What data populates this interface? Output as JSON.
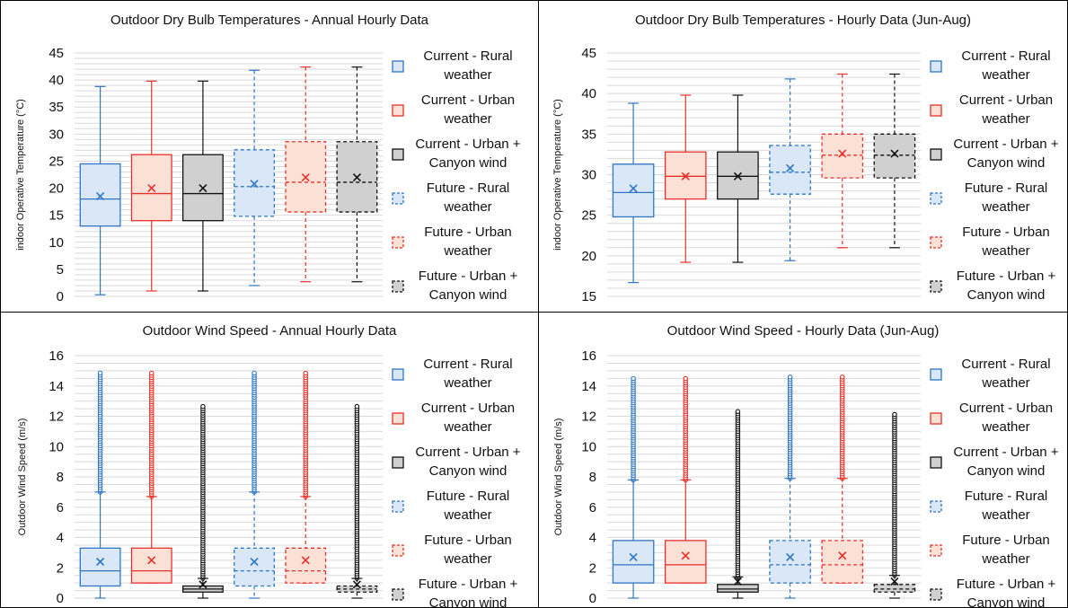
{
  "colors": {
    "blue": "#2E75C6",
    "blue_fill": "#DAE7F6",
    "red": "#E8302A",
    "red_fill": "#FBE0D6",
    "black": "#111111",
    "gray_fill": "#D0D0D0",
    "grid": "#D9D9D9"
  },
  "legend": [
    {
      "line1": "Current - Rural",
      "line2": "weather",
      "color": "blue",
      "dashed": false
    },
    {
      "line1": "Current - Urban",
      "line2": "weather",
      "color": "red",
      "dashed": false
    },
    {
      "line1": "Current - Urban +",
      "line2": "Canyon wind",
      "color": "black",
      "dashed": false
    },
    {
      "line1": "Future - Rural",
      "line2": "weather",
      "color": "blue",
      "dashed": true
    },
    {
      "line1": "Future - Urban",
      "line2": "weather",
      "color": "red",
      "dashed": true
    },
    {
      "line1": "Future - Urban +",
      "line2": "Canyon wind",
      "color": "black",
      "dashed": true
    }
  ],
  "chart_data": [
    {
      "type": "box",
      "title": "Outdoor Dry Bulb Temperatures - Annual Hourly Data",
      "ylabel": "indoor Operative Temperature (°C)",
      "ylim": [
        0,
        45
      ],
      "ytick_step": 5,
      "minor_step": 1,
      "series": [
        {
          "min": 0.3,
          "q1": 13,
          "median": 18,
          "q3": 24.5,
          "mean": 18.5,
          "max": 38.8,
          "whisker_low": 0.3,
          "whisker_high": 38.8
        },
        {
          "min": 1,
          "q1": 14,
          "median": 19,
          "q3": 26.2,
          "mean": 20,
          "max": 39.8,
          "whisker_low": 1,
          "whisker_high": 39.8
        },
        {
          "min": 1,
          "q1": 14,
          "median": 19,
          "q3": 26.2,
          "mean": 20,
          "max": 39.8,
          "whisker_low": 1,
          "whisker_high": 39.8
        },
        {
          "min": 2,
          "q1": 14.8,
          "median": 20.3,
          "q3": 27.1,
          "mean": 20.8,
          "max": 41.8,
          "whisker_low": 2,
          "whisker_high": 41.8
        },
        {
          "min": 2.7,
          "q1": 15.6,
          "median": 21.1,
          "q3": 28.6,
          "mean": 22,
          "max": 42.4,
          "whisker_low": 2.7,
          "whisker_high": 42.4
        },
        {
          "min": 2.7,
          "q1": 15.6,
          "median": 21.1,
          "q3": 28.6,
          "mean": 22,
          "max": 42.4,
          "whisker_low": 2.7,
          "whisker_high": 42.4
        }
      ]
    },
    {
      "type": "box",
      "title": "Outdoor Dry Bulb Temperatures - Hourly Data (Jun-Aug)",
      "ylabel": "indoor Operative Temperature (°C)",
      "ylim": [
        15,
        45
      ],
      "ytick_step": 5,
      "minor_step": 1,
      "series": [
        {
          "min": 16.7,
          "q1": 24.8,
          "median": 27.8,
          "q3": 31.3,
          "mean": 28.3,
          "max": 38.8,
          "whisker_low": 16.7,
          "whisker_high": 38.8
        },
        {
          "min": 19.2,
          "q1": 27,
          "median": 29.8,
          "q3": 32.8,
          "mean": 29.8,
          "max": 39.8,
          "whisker_low": 19.2,
          "whisker_high": 39.8
        },
        {
          "min": 19.2,
          "q1": 27,
          "median": 29.8,
          "q3": 32.8,
          "mean": 29.8,
          "max": 39.8,
          "whisker_low": 19.2,
          "whisker_high": 39.8
        },
        {
          "min": 19.4,
          "q1": 27.6,
          "median": 30.3,
          "q3": 33.6,
          "mean": 30.8,
          "max": 41.8,
          "whisker_low": 19.4,
          "whisker_high": 41.8
        },
        {
          "min": 21,
          "q1": 29.6,
          "median": 32.4,
          "q3": 35,
          "mean": 32.6,
          "max": 42.4,
          "whisker_low": 21,
          "whisker_high": 42.4
        },
        {
          "min": 21,
          "q1": 29.6,
          "median": 32.4,
          "q3": 35,
          "mean": 32.6,
          "max": 42.4,
          "whisker_low": 21,
          "whisker_high": 42.4
        }
      ]
    },
    {
      "type": "box",
      "title": "Outdoor Wind Speed - Annual Hourly Data",
      "ylabel": "Outdoor Wind Speed (m/s)",
      "ylim": [
        0,
        16
      ],
      "ytick_step": 2,
      "minor_step": 0.5,
      "series": [
        {
          "min": 0,
          "q1": 0.8,
          "median": 1.8,
          "q3": 3.3,
          "mean": 2.4,
          "max": 14.9,
          "whisker_low": 0,
          "whisker_high": 7
        },
        {
          "min": 1,
          "q1": 1,
          "median": 1.8,
          "q3": 3.3,
          "mean": 2.5,
          "max": 14.9,
          "whisker_low": 1,
          "whisker_high": 6.7
        },
        {
          "min": 0,
          "q1": 0.4,
          "median": 0.6,
          "q3": 0.8,
          "mean": 0.9,
          "max": 12.7,
          "whisker_low": 0,
          "whisker_high": 1.3
        },
        {
          "min": 0,
          "q1": 0.8,
          "median": 1.8,
          "q3": 3.3,
          "mean": 2.4,
          "max": 14.9,
          "whisker_low": 0,
          "whisker_high": 7
        },
        {
          "min": 1,
          "q1": 1,
          "median": 1.8,
          "q3": 3.3,
          "mean": 2.5,
          "max": 14.9,
          "whisker_low": 1,
          "whisker_high": 6.7
        },
        {
          "min": 0,
          "q1": 0.4,
          "median": 0.6,
          "q3": 0.8,
          "mean": 0.9,
          "max": 12.7,
          "whisker_low": 0,
          "whisker_high": 1.3
        }
      ]
    },
    {
      "type": "box",
      "title": "Outdoor Wind Speed - Hourly Data (Jun-Aug)",
      "ylabel": "Outdoor Wind Speed (m/s)",
      "ylim": [
        0,
        16
      ],
      "ytick_step": 2,
      "minor_step": 0.5,
      "series": [
        {
          "min": 0,
          "q1": 1,
          "median": 2.2,
          "q3": 3.8,
          "mean": 2.7,
          "max": 14.6,
          "whisker_low": 0,
          "whisker_high": 7.8
        },
        {
          "min": 1,
          "q1": 1,
          "median": 2.2,
          "q3": 3.8,
          "mean": 2.8,
          "max": 14.6,
          "whisker_low": 1,
          "whisker_high": 7.8
        },
        {
          "min": 0,
          "q1": 0.4,
          "median": 0.6,
          "q3": 0.9,
          "mean": 1.1,
          "max": 12.4,
          "whisker_low": 0,
          "whisker_high": 1.4
        },
        {
          "min": 0,
          "q1": 1,
          "median": 2.2,
          "q3": 3.8,
          "mean": 2.7,
          "max": 14.6,
          "whisker_low": 0,
          "whisker_high": 7.9
        },
        {
          "min": 1,
          "q1": 1,
          "median": 2.2,
          "q3": 3.8,
          "mean": 2.8,
          "max": 14.6,
          "whisker_low": 1,
          "whisker_high": 7.9
        },
        {
          "min": 0,
          "q1": 0.4,
          "median": 0.6,
          "q3": 0.9,
          "mean": 1.1,
          "max": 12.2,
          "whisker_low": 0,
          "whisker_high": 1.5
        }
      ]
    }
  ]
}
